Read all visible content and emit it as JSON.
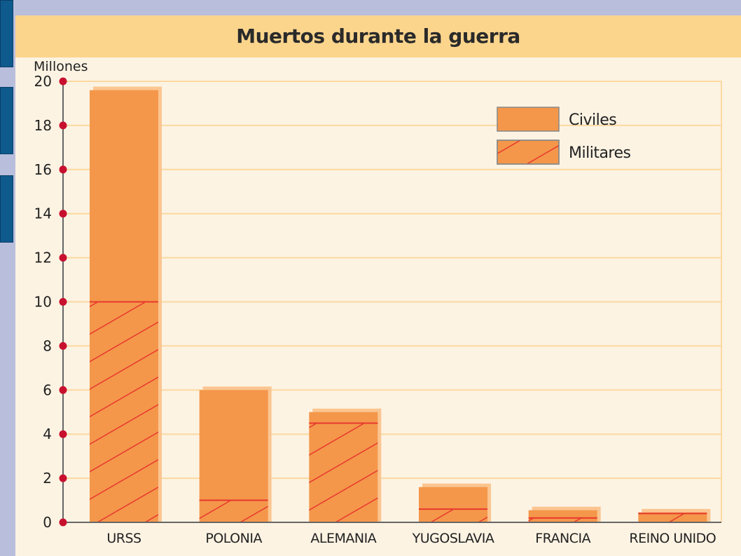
{
  "chart_data": {
    "type": "bar",
    "stacked": true,
    "title": "Muertos durante la guerra",
    "ylabel": "Millones",
    "xlabel": "",
    "ylim": [
      0,
      20
    ],
    "yticks": [
      0,
      2,
      4,
      6,
      8,
      10,
      12,
      14,
      16,
      18,
      20
    ],
    "categories": [
      "URSS",
      "POLONIA",
      "ALEMANIA",
      "YUGOSLAVIA",
      "FRANCIA",
      "REINO UNIDO"
    ],
    "series": [
      {
        "name": "Militares",
        "values": [
          10,
          1,
          4.5,
          0.6,
          0.2,
          0.4
        ],
        "pattern": "hatched",
        "color": "#f4974a",
        "hatch_color": "#e8382e"
      },
      {
        "name": "Civiles",
        "values": [
          9.6,
          5,
          0.5,
          1,
          0.35,
          0.05
        ],
        "pattern": "solid",
        "color": "#f4974a"
      }
    ],
    "grid": true,
    "legend_position": "top-right"
  },
  "colors": {
    "background": "#b9bedd",
    "panel": "#fdf3e3",
    "title_band": "#fcd58d",
    "grid": "#fbd9a0",
    "bar": "#f4974a",
    "bar_shadow": "#fbc591",
    "hatch": "#e8382e",
    "tick_dot": "#c8102e",
    "side_tab": "#0e5a8d"
  }
}
